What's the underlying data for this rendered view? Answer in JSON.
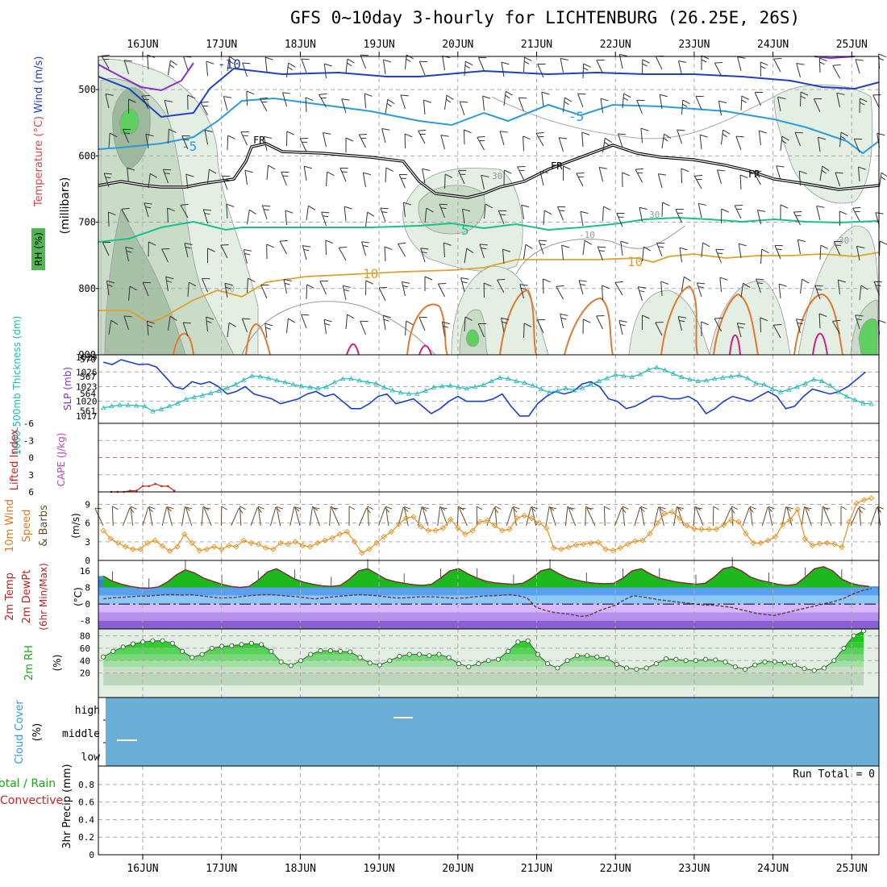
{
  "title": "GFS 0~10day 3-hourly for LICHTENBURG (26.25E, 26S)",
  "date_labels": [
    "16JUN",
    "17JUN",
    "18JUN",
    "19JUN",
    "20JUN",
    "21JUN",
    "22JUN",
    "23JUN",
    "24JUN",
    "25JUN"
  ],
  "colors": {
    "frame": "#000000",
    "grid": "#aaaaaa",
    "slp": "#1a3fd0",
    "thickness": "#20b8b8",
    "wind_speed": "#e89020",
    "barb": "#6b4a2a",
    "temp_fill": "#1db81d",
    "rh_fill": "#1ee01e",
    "cloud_bg": "#6aaed6",
    "li_line": "#d02020"
  },
  "panels": {
    "upper": {
      "ylabel_parts": [
        "RH (%)",
        "Temperature (°C)",
        "Wind (m/s)"
      ],
      "ylabel_units": "(millibars)",
      "ylim": [
        900,
        450
      ],
      "ticks": [
        "500",
        "600",
        "700",
        "800",
        "900"
      ],
      "contour_labels": [
        "-10",
        "-5",
        "-5",
        "5",
        "FR",
        "FR",
        "FR",
        "5",
        "10",
        "10",
        "30",
        "30",
        "30",
        "-10",
        "50"
      ]
    },
    "slp_thick": {
      "ylabel_left": "1000-500mb Thickness (dm)",
      "ylabel_right": "SLP (mb)",
      "ticks_left": [
        "570",
        "567",
        "564",
        "561"
      ],
      "ticks_right": [
        "1029",
        "1026",
        "1023",
        "1020",
        "1017"
      ]
    },
    "stability": {
      "ylabel_left": "Lifted Index",
      "ylabel_right": "CAPE (J/kg)",
      "ticks": [
        "-6",
        "-3",
        "0",
        "3",
        "6"
      ]
    },
    "wind10": {
      "ylabel": [
        "10m Wind",
        "Speed",
        "& Barbs"
      ],
      "units": "(m/s)",
      "ticks": [
        "9",
        "6",
        "3",
        "0"
      ]
    },
    "temp2m": {
      "ylabel": [
        "2m Temp",
        "2m DewPt",
        "(6hr Min/Max)"
      ],
      "units": "(°C)",
      "ticks": [
        "16",
        "8",
        "0",
        "-8"
      ]
    },
    "rh2m": {
      "ylabel": "2m RH",
      "units": "(%)",
      "ticks": [
        "80",
        "60",
        "40",
        "20"
      ]
    },
    "cloud": {
      "ylabel": [
        "Cloud Cover",
        "(%)"
      ],
      "levels": [
        "high",
        "middle",
        "low"
      ]
    },
    "precip": {
      "ylabel_left": [
        "Total / Rain",
        "Convective"
      ],
      "ylabel_right": "3hr Precip (mm)",
      "run_total": "Run Total = 0",
      "ticks": [
        "0.8",
        "0.6",
        "0.4",
        "0.2",
        "0"
      ]
    }
  },
  "chart_data": [
    {
      "type": "line",
      "name": "SLP (mb)",
      "x_unit": "3-hourly steps from 15JUN 12Z",
      "values": [
        1028,
        1027.5,
        1028.5,
        1028,
        1027.5,
        1027.6,
        1027,
        1025,
        1023,
        1022.5,
        1024,
        1023.5,
        1024,
        1023,
        1021.5,
        1022,
        1023,
        1021.5,
        1021,
        1020.5,
        1019.5,
        1020,
        1020.5,
        1021.5,
        1022,
        1021,
        1021.5,
        1020,
        1018.5,
        1018.5,
        1019.5,
        1021,
        1021.5,
        1019.5,
        1020,
        1020.5,
        1019,
        1017.5,
        1018.5,
        1020,
        1021,
        1020,
        1020,
        1020,
        1020.5,
        1021.5,
        1019,
        1017,
        1017,
        1019.5,
        1021,
        1022,
        1021.5,
        1022,
        1023.5,
        1024,
        1023,
        1020.5,
        1020,
        1018.5,
        1019,
        1020,
        1021,
        1021,
        1020.5,
        1020.5,
        1021,
        1020,
        1017.5,
        1018.5,
        1020,
        1021,
        1020.5,
        1020,
        1021,
        1022,
        1021,
        1018.5,
        1019,
        1021,
        1022.5,
        1022,
        1021.5,
        1022,
        1023,
        1024.5,
        1026
      ]
    },
    {
      "type": "line",
      "name": "1000-500mb Thickness (dm)",
      "values": [
        561.5,
        561.8,
        562,
        562,
        561.9,
        561.8,
        560.9,
        561.3,
        561.8,
        562.3,
        563,
        563.4,
        563.7,
        564.1,
        564.5,
        565,
        565.6,
        566.4,
        567.1,
        567,
        566.7,
        566.3,
        566,
        565.6,
        565.3,
        565.1,
        564.9,
        565.2,
        566,
        566.6,
        566.6,
        566.3,
        566,
        565.8,
        565.1,
        564.6,
        564.2,
        564,
        564,
        564.5,
        565.1,
        565.3,
        565.4,
        565.1,
        564.9,
        565.2,
        565.5,
        566.2,
        566.8,
        566.6,
        566.2,
        565.9,
        565.4,
        564.8,
        564.2,
        564.5,
        564.9,
        564.6,
        565,
        565.6,
        566.2,
        566.7,
        567.3,
        567.1,
        566.9,
        567.4,
        568.2,
        568.6,
        568.1,
        567.5,
        566.9,
        566.5,
        566.2,
        566.3,
        566.6,
        566.8,
        567,
        567.2,
        566.7,
        565.8,
        565.6,
        564.8,
        564.3,
        564.7,
        565.2,
        565.8,
        566.5,
        566.2,
        565.4,
        564.3,
        563.5,
        562.9,
        562.3,
        562.2
      ]
    },
    {
      "type": "line",
      "name": "Lifted Index",
      "values": [
        6,
        6,
        6,
        5.8,
        5.8,
        5,
        5,
        4.6,
        5,
        5,
        5.8
      ]
    },
    {
      "type": "line",
      "name": "10m Wind Speed (m/s)",
      "values": [
        4.8,
        3.5,
        2.8,
        2.2,
        1.8,
        1.8,
        2.8,
        3.2,
        2.3,
        1.5,
        2.2,
        4.2,
        2.8,
        1.6,
        1.8,
        2.2,
        1.8,
        2.4,
        2.2,
        3.2,
        2.8,
        2.6,
        2,
        1.8,
        2.8,
        2.6,
        3,
        2.4,
        2.2,
        2.8,
        3.2,
        3.6,
        4.2,
        4.6,
        3,
        1.2,
        1.8,
        2.8,
        3.8,
        4.6,
        5.8,
        6.8,
        7,
        5.4,
        4.8,
        4.8,
        5.2,
        6.6,
        5.2,
        4.2,
        4.8,
        6.2,
        6.4,
        5.6,
        4.8,
        5,
        6.8,
        7.2,
        6.8,
        6,
        5.2,
        2,
        1.8,
        2.1,
        2.5,
        2.6,
        2.8,
        2.9,
        1.8,
        1.6,
        2,
        2.6,
        3.1,
        3.2,
        4.3,
        6,
        7.5,
        7.8,
        6.8,
        5.6,
        5.1,
        5,
        5,
        5,
        5.7,
        6.5,
        6.2,
        4.3,
        2.8,
        2.8,
        3.2,
        3.8,
        5.8,
        6.5,
        8.2,
        3.5,
        2.4,
        2.7,
        2.8,
        2.6,
        2.1,
        6.2,
        9.2,
        9.7,
        10
      ]
    },
    {
      "type": "area",
      "name": "2m Temp (°C)",
      "values": [
        13.5,
        11,
        9.5,
        8.5,
        7.8,
        7.7,
        8.2,
        10.5,
        14,
        16.5,
        15,
        12.5,
        11,
        9.5,
        8.5,
        8,
        8.5,
        11.5,
        15.5,
        17,
        14.5,
        12,
        10.5,
        9.5,
        8.8,
        8.5,
        9,
        12,
        16,
        17,
        14.5,
        12,
        10.8,
        10,
        9.3,
        9,
        9.5,
        12.5,
        16,
        17,
        14.5,
        12.5,
        11,
        10.2,
        9.8,
        9.5,
        10,
        12.5,
        16,
        17,
        14.5,
        12.5,
        11.5,
        10.5,
        10,
        9.8,
        10,
        12.5,
        16,
        17,
        14.5,
        12.5,
        11.5,
        10.5,
        10,
        9.5,
        10,
        13,
        17,
        18,
        16,
        13,
        11.5,
        10.5,
        9.5,
        9,
        9.5,
        13,
        17,
        18,
        16,
        12,
        10,
        9,
        8.5
      ]
    },
    {
      "type": "line",
      "name": "2m DewPt (°C)",
      "values": [
        2.5,
        3,
        3.2,
        3.5,
        3.8,
        3.8,
        4.2,
        4.5,
        4.5,
        4.3,
        4.5,
        4,
        3.5,
        3,
        3,
        3.2,
        3.8,
        4.2,
        4.5,
        4.5,
        4.2,
        3.8,
        3.5,
        3,
        2.5,
        3,
        3.5,
        3.8,
        4.2,
        4.5,
        4.3,
        4,
        3.5,
        3,
        3,
        3.2,
        3.5,
        3.5,
        3.3,
        3,
        2.8,
        3,
        3.5,
        3.8,
        4,
        4.2,
        4.5,
        4,
        3,
        -1.5,
        -3,
        -4,
        -4.5,
        -5,
        -6,
        -5.5,
        -3.5,
        -2,
        -0.5,
        2,
        4,
        3.5,
        2.8,
        2,
        1.5,
        1,
        0.5,
        0,
        -0.5,
        -0.5,
        -1,
        -1.5,
        -2.5,
        -3.5,
        -4.5,
        -5,
        -5.5,
        -4.5,
        -3.5,
        -2.5,
        -1.5,
        -0.5,
        0.5,
        1.5,
        3,
        5,
        6.5,
        7.5
      ]
    },
    {
      "type": "area",
      "name": "2m RH (%)",
      "values": [
        46,
        55,
        62,
        67,
        70,
        72,
        72,
        68,
        55,
        45,
        50,
        60,
        63,
        64,
        66,
        68,
        66,
        55,
        38,
        32,
        40,
        50,
        56,
        56,
        55,
        54,
        45,
        36,
        33,
        40,
        47,
        50,
        50,
        48,
        50,
        45,
        35,
        30,
        35,
        40,
        42,
        55,
        70,
        72,
        50,
        35,
        28,
        40,
        48,
        48,
        46,
        44,
        34,
        28,
        26,
        28,
        35,
        43,
        42,
        40,
        40,
        42,
        41,
        38,
        30,
        26,
        33,
        38,
        38,
        36,
        33,
        27,
        24,
        28,
        40,
        60,
        80,
        88
      ]
    },
    {
      "type": "table",
      "name": "Cloud Cover (%)",
      "levels": [
        "high",
        "middle",
        "low"
      ],
      "note": "no significant cloud; short white segments near middle on 15-16JUN and high on 19JUN"
    },
    {
      "type": "bar",
      "name": "3hr Precip (mm)",
      "ylim": [
        0,
        0.9
      ],
      "values": []
    }
  ]
}
